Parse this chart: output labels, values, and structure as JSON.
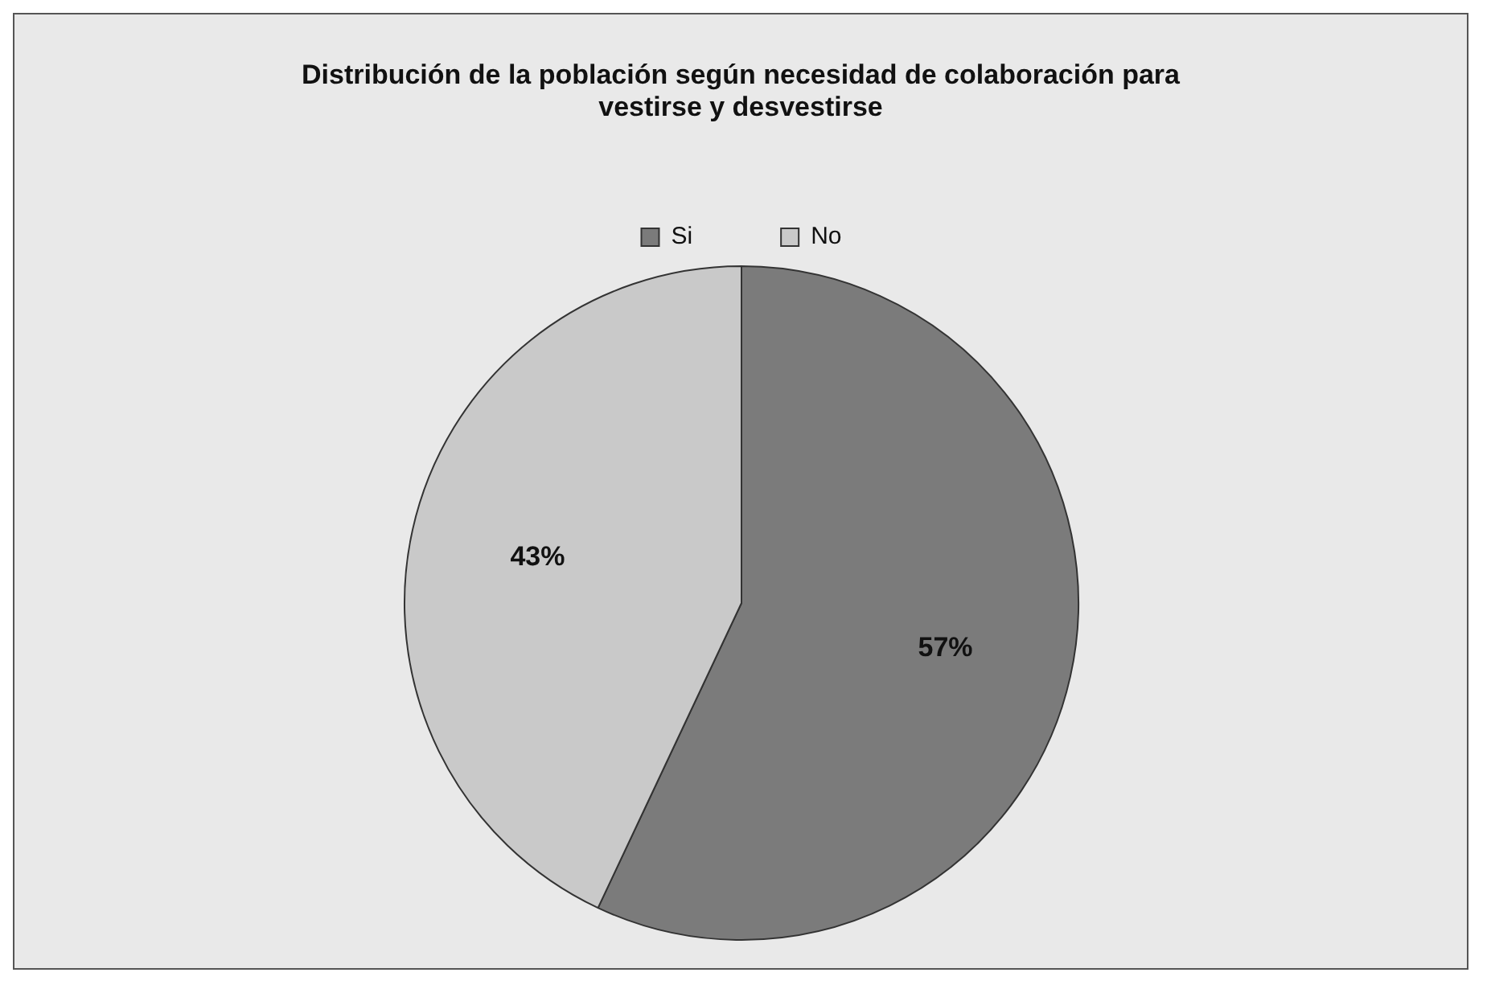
{
  "chart_data": {
    "type": "pie",
    "title": "Distribución de la población según necesidad de colaboración para vestirse y desvestirse",
    "categories": [
      "Si",
      "No"
    ],
    "values": [
      57,
      43
    ],
    "colors": [
      "#7b7b7b",
      "#c9c9c9"
    ],
    "value_labels": [
      "57%",
      "43%"
    ],
    "legend": "top"
  }
}
